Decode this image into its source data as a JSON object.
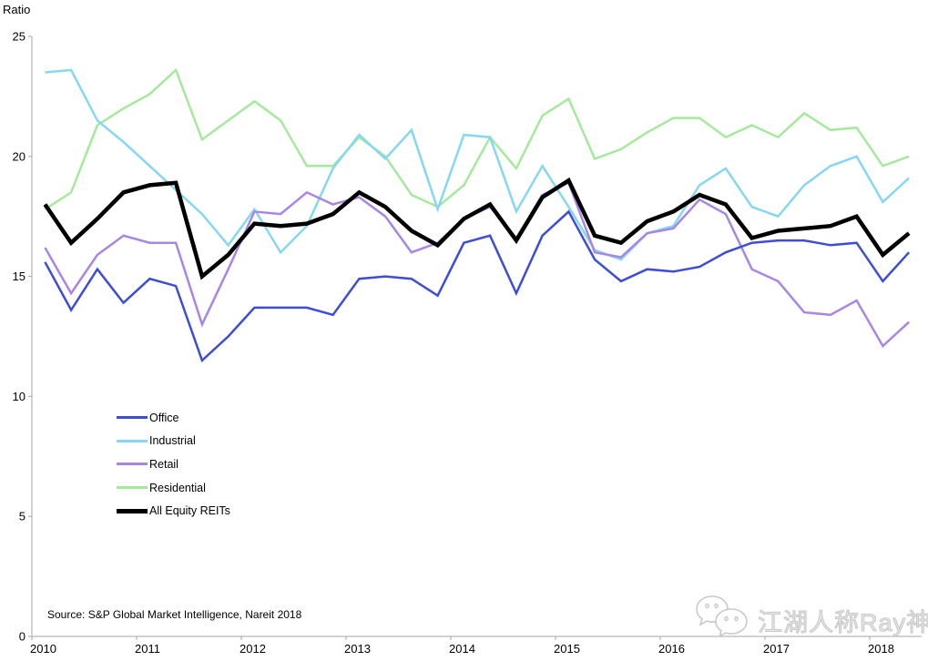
{
  "header": {
    "y_axis_title": "Ratio"
  },
  "source_note": "Source: S&P Global Market Intelligence, Nareit 2018",
  "watermark": {
    "text": "江湖人称Ray神",
    "icon": "wechat-chat-bubbles"
  },
  "axis": {
    "line_color": "#a6a6a6",
    "label_color": "#000000"
  },
  "chart_data": {
    "type": "line",
    "title": "",
    "ylabel": "Ratio",
    "xlabel": "",
    "ylim": [
      0,
      25
    ],
    "y_ticks": [
      0,
      5,
      10,
      15,
      20,
      25
    ],
    "x_tick_labels": [
      "2010",
      "2011",
      "2012",
      "2013",
      "2014",
      "2015",
      "2016",
      "2017",
      "2018"
    ],
    "frequency": "quarterly",
    "grid": false,
    "legend_position": "left-middle",
    "categories": [
      "2010Q1",
      "2010Q2",
      "2010Q3",
      "2010Q4",
      "2011Q1",
      "2011Q2",
      "2011Q3",
      "2011Q4",
      "2012Q1",
      "2012Q2",
      "2012Q3",
      "2012Q4",
      "2013Q1",
      "2013Q2",
      "2013Q3",
      "2013Q4",
      "2014Q1",
      "2014Q2",
      "2014Q3",
      "2014Q4",
      "2015Q1",
      "2015Q2",
      "2015Q3",
      "2015Q4",
      "2016Q1",
      "2016Q2",
      "2016Q3",
      "2016Q4",
      "2017Q1",
      "2017Q2",
      "2017Q3",
      "2017Q4",
      "2018Q1",
      "2018Q2"
    ],
    "series": [
      {
        "name": "Office",
        "color": "#3d4dd8",
        "width": 2.5,
        "values": [
          15.6,
          13.6,
          15.3,
          13.9,
          14.9,
          14.6,
          11.5,
          12.5,
          13.7,
          13.7,
          13.7,
          13.4,
          14.9,
          15.0,
          14.9,
          14.2,
          16.4,
          16.7,
          14.3,
          16.7,
          17.7,
          15.7,
          14.8,
          15.3,
          15.2,
          15.4,
          16.0,
          16.4,
          16.5,
          16.5,
          16.3,
          16.4,
          14.8,
          16.0
        ]
      },
      {
        "name": "Industrial",
        "color": "#85d7f2",
        "width": 2.5,
        "values": [
          23.5,
          23.6,
          21.5,
          20.6,
          19.6,
          18.6,
          17.6,
          16.3,
          17.8,
          16.0,
          17.1,
          19.5,
          20.9,
          19.9,
          21.1,
          17.8,
          20.9,
          20.8,
          17.7,
          19.6,
          17.9,
          16.1,
          15.7,
          16.8,
          17.1,
          18.8,
          19.5,
          17.9,
          17.5,
          18.8,
          19.6,
          20.0,
          18.1,
          19.1
        ]
      },
      {
        "name": "Retail",
        "color": "#a886e5",
        "width": 2.5,
        "values": [
          16.2,
          14.3,
          15.9,
          16.7,
          16.4,
          16.4,
          13.0,
          15.3,
          17.7,
          17.6,
          18.5,
          18.0,
          18.3,
          17.5,
          16.0,
          16.4,
          17.4,
          17.9,
          16.6,
          18.4,
          18.9,
          16.0,
          15.8,
          16.8,
          17.0,
          18.2,
          17.6,
          15.3,
          14.8,
          13.5,
          13.4,
          14.0,
          12.1,
          13.1
        ]
      },
      {
        "name": "Residential",
        "color": "#a5e99c",
        "width": 2.5,
        "values": [
          17.8,
          18.5,
          21.3,
          22.0,
          22.6,
          23.6,
          20.7,
          21.5,
          22.3,
          21.5,
          19.6,
          19.6,
          20.8,
          20.0,
          18.4,
          17.9,
          18.8,
          20.8,
          19.5,
          21.7,
          22.4,
          19.9,
          20.3,
          21.0,
          21.6,
          21.6,
          20.8,
          21.3,
          20.8,
          21.8,
          21.1,
          21.2,
          19.6,
          20.0
        ]
      },
      {
        "name": "All Equity REITs",
        "color": "#000000",
        "width": 4.5,
        "values": [
          18.0,
          16.4,
          17.4,
          18.5,
          18.8,
          18.9,
          15.0,
          15.9,
          17.2,
          17.1,
          17.2,
          17.6,
          18.5,
          17.9,
          16.9,
          16.3,
          17.4,
          18.0,
          16.5,
          18.3,
          19.0,
          16.7,
          16.4,
          17.3,
          17.7,
          18.4,
          18.0,
          16.6,
          16.9,
          17.0,
          17.1,
          17.5,
          15.9,
          16.8
        ]
      }
    ]
  }
}
